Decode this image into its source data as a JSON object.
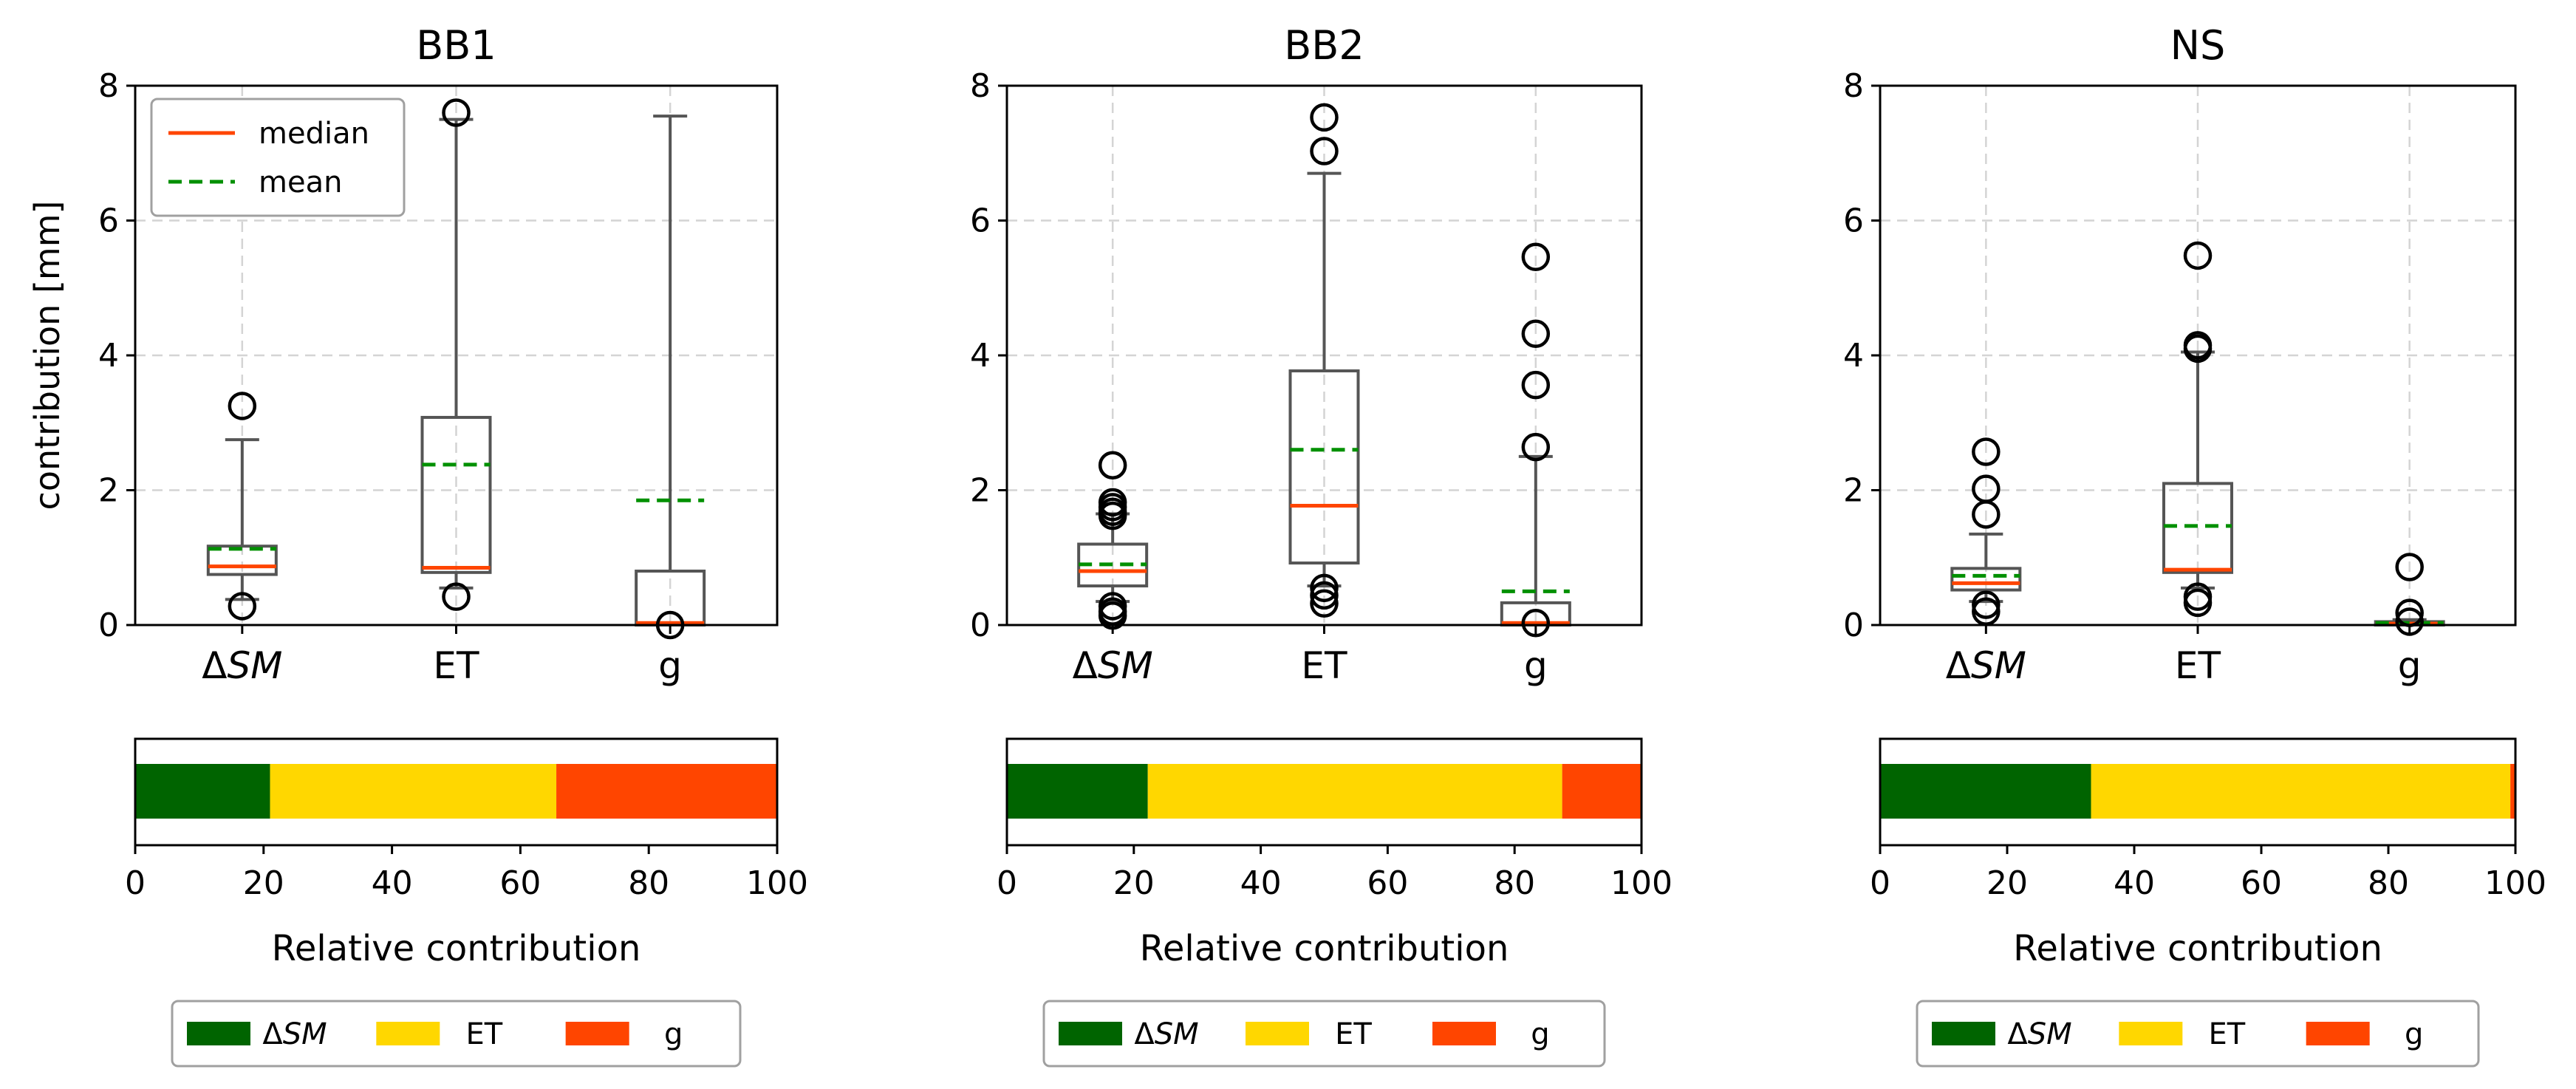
{
  "chart_data": [
    {
      "type": "boxplot",
      "title": "BB1",
      "ylabel": "contribution [mm]",
      "ylim": [
        0,
        8
      ],
      "yticks": [
        0,
        2,
        4,
        6,
        8
      ],
      "grid": true,
      "legend_placement": "top-left",
      "categories": [
        "ΔSM",
        "ET",
        "g"
      ],
      "boxes": [
        {
          "category": "ΔSM",
          "q1": 0.75,
          "median": 0.87,
          "q3": 1.17,
          "whisker_low": 0.38,
          "whisker_high": 2.75,
          "mean": 1.13,
          "outliers": [
            3.25,
            0.28
          ]
        },
        {
          "category": "ET",
          "q1": 0.78,
          "median": 0.85,
          "q3": 3.08,
          "whisker_low": 0.55,
          "whisker_high": 7.5,
          "mean": 2.38,
          "outliers": [
            7.6,
            0.42
          ]
        },
        {
          "category": "g",
          "q1": 0.0,
          "median": 0.03,
          "q3": 0.8,
          "whisker_low": 0.0,
          "whisker_high": 7.55,
          "mean": 1.85,
          "outliers": [
            0.0
          ]
        }
      ]
    },
    {
      "type": "boxplot",
      "title": "BB2",
      "ylabel": "",
      "ylim": [
        0,
        8
      ],
      "yticks": [
        0,
        2,
        4,
        6,
        8
      ],
      "grid": true,
      "categories": [
        "ΔSM",
        "ET",
        "g"
      ],
      "boxes": [
        {
          "category": "ΔSM",
          "q1": 0.58,
          "median": 0.8,
          "q3": 1.2,
          "whisker_low": 0.35,
          "whisker_high": 1.65,
          "mean": 0.9,
          "outliers": [
            2.37,
            1.82,
            1.75,
            1.68,
            1.62,
            0.28,
            0.2,
            0.14
          ]
        },
        {
          "category": "ET",
          "q1": 0.92,
          "median": 1.77,
          "q3": 3.77,
          "whisker_low": 0.58,
          "whisker_high": 6.7,
          "mean": 2.6,
          "outliers": [
            7.53,
            7.03,
            0.55,
            0.44,
            0.32
          ]
        },
        {
          "category": "g",
          "q1": 0.0,
          "median": 0.03,
          "q3": 0.33,
          "whisker_low": 0.0,
          "whisker_high": 2.5,
          "mean": 0.5,
          "outliers": [
            5.46,
            4.32,
            3.56,
            2.64,
            0.03
          ]
        }
      ]
    },
    {
      "type": "boxplot",
      "title": "NS",
      "ylabel": "",
      "ylim": [
        0,
        8
      ],
      "yticks": [
        0,
        2,
        4,
        6,
        8
      ],
      "grid": true,
      "categories": [
        "ΔSM",
        "ET",
        "g"
      ],
      "boxes": [
        {
          "category": "ΔSM",
          "q1": 0.52,
          "median": 0.62,
          "q3": 0.84,
          "whisker_low": 0.35,
          "whisker_high": 1.35,
          "mean": 0.73,
          "outliers": [
            2.57,
            2.02,
            1.64,
            0.3,
            0.2
          ]
        },
        {
          "category": "ET",
          "q1": 0.78,
          "median": 0.82,
          "q3": 2.1,
          "whisker_low": 0.55,
          "whisker_high": 4.05,
          "mean": 1.47,
          "outliers": [
            5.48,
            4.15,
            4.1,
            0.42,
            0.33
          ]
        },
        {
          "category": "g",
          "q1": 0.0,
          "median": 0.02,
          "q3": 0.05,
          "whisker_low": 0.0,
          "whisker_high": 0.08,
          "mean": 0.03,
          "outliers": [
            0.86,
            0.18,
            0.05
          ]
        }
      ]
    },
    {
      "type": "stacked_bar",
      "panel": "BB1",
      "xlabel": "Relative contribution",
      "xlim": [
        0,
        100
      ],
      "xticks": [
        0,
        20,
        40,
        60,
        80,
        100
      ],
      "segments": [
        {
          "name": "ΔSM",
          "value": 21
        },
        {
          "name": "ET",
          "value": 44.6
        },
        {
          "name": "g",
          "value": 34.4
        }
      ]
    },
    {
      "type": "stacked_bar",
      "panel": "BB2",
      "xlabel": "Relative contribution",
      "xlim": [
        0,
        100
      ],
      "xticks": [
        0,
        20,
        40,
        60,
        80,
        100
      ],
      "segments": [
        {
          "name": "ΔSM",
          "value": 22.2
        },
        {
          "name": "ET",
          "value": 65.3
        },
        {
          "name": "g",
          "value": 12.5
        }
      ]
    },
    {
      "type": "stacked_bar",
      "panel": "NS",
      "xlabel": "Relative contribution",
      "xlim": [
        0,
        100
      ],
      "xticks": [
        0,
        20,
        40,
        60,
        80,
        100
      ],
      "segments": [
        {
          "name": "ΔSM",
          "value": 33.2
        },
        {
          "name": "ET",
          "value": 66
        },
        {
          "name": "g",
          "value": 0.8
        }
      ]
    }
  ],
  "legend_box": {
    "median_label": "median",
    "mean_label": "mean"
  },
  "legend_bottom": [
    "ΔSM",
    "ET",
    "g"
  ],
  "colors": {
    "ΔSM": "#006400",
    "ET": "#FFD700",
    "g": "#FF4500",
    "median": "#FF4500",
    "mean": "#009000",
    "box": "#555555"
  }
}
